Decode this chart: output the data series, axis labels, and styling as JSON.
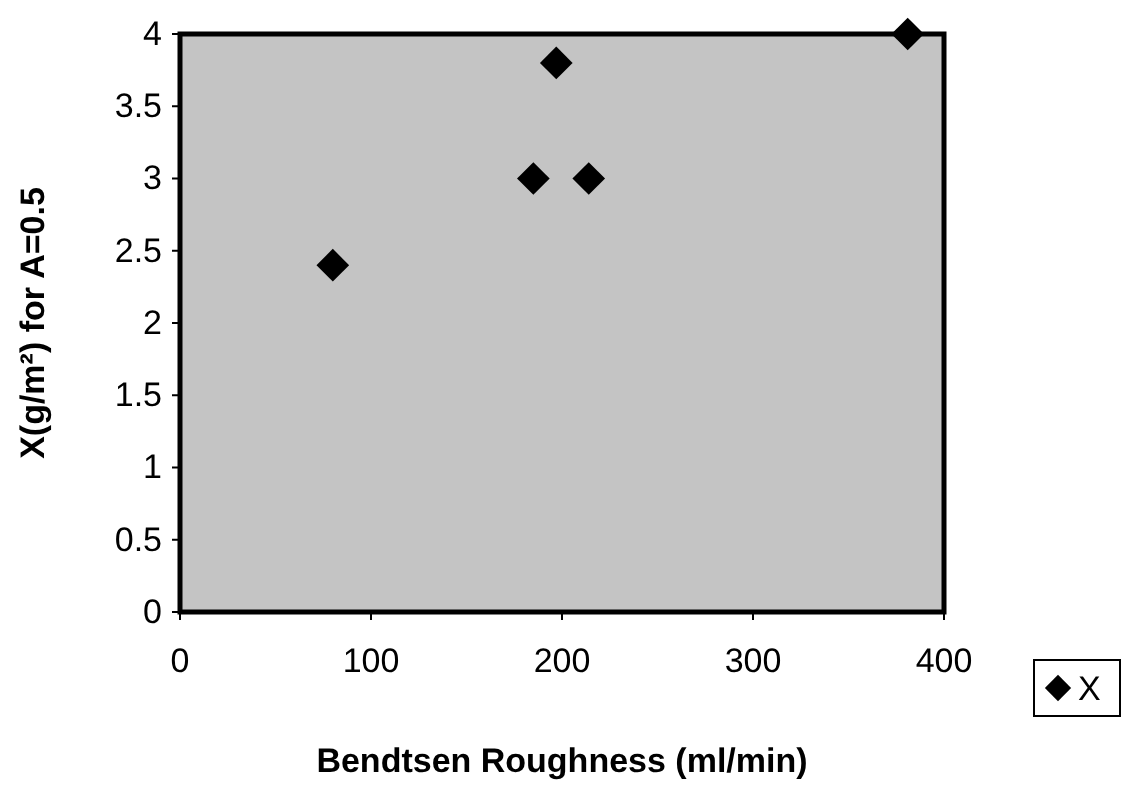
{
  "chart_data": {
    "type": "scatter",
    "xlabel": "Bendtsen Roughness (ml/min)",
    "ylabel": "X(g/m²) for A=0.5",
    "x": [
      80,
      185,
      197,
      214,
      381
    ],
    "series": [
      {
        "name": "X",
        "color": "#000000",
        "values": [
          2.4,
          3,
          3.8,
          3,
          4
        ]
      }
    ],
    "xlim": [
      0,
      400
    ],
    "xticks": [
      0,
      100,
      200,
      300,
      400
    ],
    "ylim": [
      0,
      4
    ],
    "yticks": [
      0,
      0.5,
      1,
      1.5,
      2,
      2.5,
      3,
      3.5,
      4
    ],
    "marker": "diamond",
    "legend": "right",
    "grid": false
  }
}
